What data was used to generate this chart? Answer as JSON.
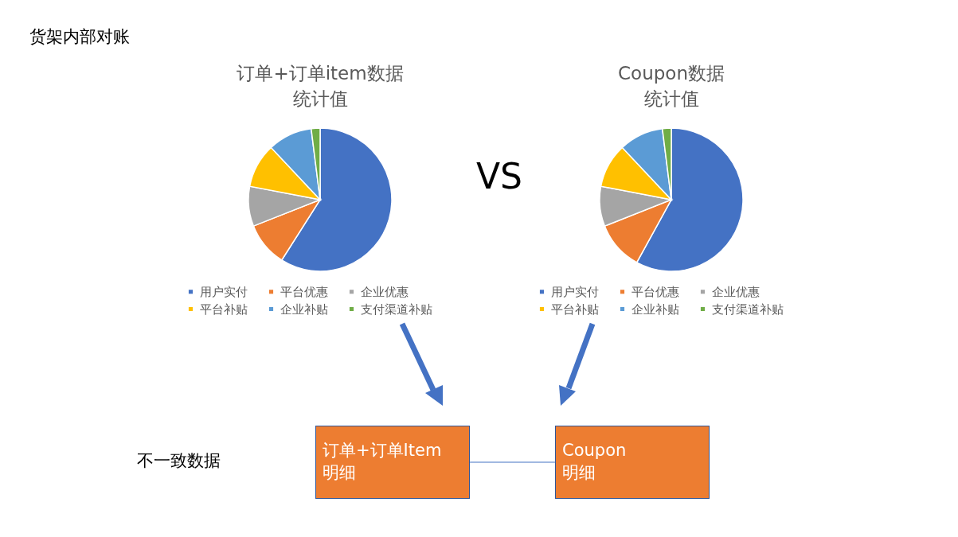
{
  "chart_data": [
    {
      "type": "pie",
      "title": "订单+订单item数据统计值",
      "categories": [
        "用户实付",
        "平台优惠",
        "企业优惠",
        "平台补贴",
        "企业补贴",
        "支付渠道补贴"
      ],
      "values": [
        59,
        10,
        9,
        10,
        10,
        2
      ],
      "colors": [
        "#4472c4",
        "#ed7d31",
        "#a5a5a5",
        "#ffc000",
        "#5b9bd5",
        "#70ad47"
      ],
      "legend": "bottom"
    },
    {
      "type": "pie",
      "title": "Coupon数据统计值",
      "categories": [
        "用户实付",
        "平台优惠",
        "企业优惠",
        "平台补贴",
        "企业补贴",
        "支付渠道补贴"
      ],
      "values": [
        58,
        11,
        9,
        10,
        10,
        2
      ],
      "colors": [
        "#4472c4",
        "#ed7d31",
        "#a5a5a5",
        "#ffc000",
        "#5b9bd5",
        "#70ad47"
      ],
      "legend": "bottom"
    },
    {
      "type": "other",
      "title": "货架内部对账",
      "annotations": [
        "VS",
        "不一致数据",
        "订单+订单Item\n明细",
        "Coupon\n明细"
      ]
    }
  ]
}
